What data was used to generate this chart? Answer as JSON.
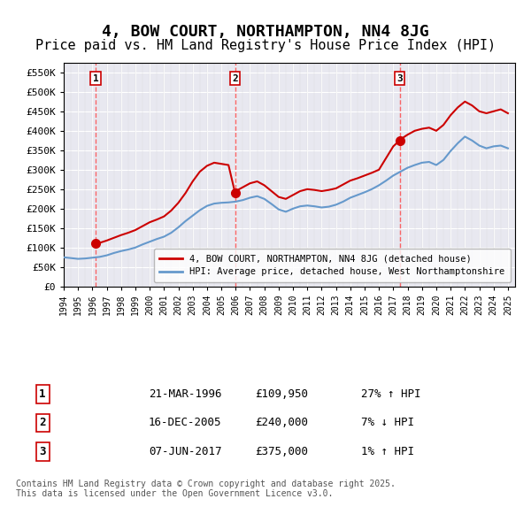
{
  "title": "4, BOW COURT, NORTHAMPTON, NN4 8JG",
  "subtitle": "Price paid vs. HM Land Registry's House Price Index (HPI)",
  "title_fontsize": 13,
  "subtitle_fontsize": 11,
  "background_color": "#ffffff",
  "plot_bg_color": "#e8e8f0",
  "grid_color": "#ffffff",
  "ylim": [
    0,
    575000
  ],
  "yticks": [
    0,
    50000,
    100000,
    150000,
    200000,
    250000,
    300000,
    350000,
    400000,
    450000,
    500000,
    550000
  ],
  "ytick_labels": [
    "£0",
    "£50K",
    "£100K",
    "£150K",
    "£200K",
    "£250K",
    "£300K",
    "£350K",
    "£400K",
    "£450K",
    "£500K",
    "£550K"
  ],
  "sale_dates": [
    1996.22,
    2005.96,
    2017.44
  ],
  "sale_prices": [
    109950,
    240000,
    375000
  ],
  "sale_labels": [
    "1",
    "2",
    "3"
  ],
  "sale_label_dates": [
    1996.22,
    2005.96,
    2017.44
  ],
  "sale_label_prices": [
    109950,
    240000,
    375000
  ],
  "vline_dates": [
    1996.22,
    2005.96,
    2017.44
  ],
  "red_line_color": "#cc0000",
  "blue_line_color": "#6699cc",
  "sale_dot_color": "#cc0000",
  "hpi_color": "#6699cc",
  "legend_box_color": "#ffffff",
  "legend_border_color": "#aaaaaa",
  "table_entries": [
    {
      "num": "1",
      "date": "21-MAR-1996",
      "price": "£109,950",
      "hpi": "27% ↑ HPI"
    },
    {
      "num": "2",
      "date": "16-DEC-2005",
      "price": "£240,000",
      "hpi": "7% ↓ HPI"
    },
    {
      "num": "3",
      "date": "07-JUN-2017",
      "price": "£375,000",
      "hpi": "1% ↑ HPI"
    }
  ],
  "footer": "Contains HM Land Registry data © Crown copyright and database right 2025.\nThis data is licensed under the Open Government Licence v3.0.",
  "red_hpi_data": {
    "years": [
      1996.22,
      1996.5,
      1997.0,
      1997.5,
      1998.0,
      1998.5,
      1999.0,
      1999.5,
      2000.0,
      2000.5,
      2001.0,
      2001.5,
      2002.0,
      2002.5,
      2003.0,
      2003.5,
      2004.0,
      2004.5,
      2005.0,
      2005.5,
      2005.96,
      2006.0,
      2006.5,
      2007.0,
      2007.5,
      2008.0,
      2008.5,
      2009.0,
      2009.5,
      2010.0,
      2010.5,
      2011.0,
      2011.5,
      2012.0,
      2012.5,
      2013.0,
      2013.5,
      2014.0,
      2014.5,
      2015.0,
      2015.5,
      2016.0,
      2016.5,
      2017.0,
      2017.44,
      2017.5,
      2018.0,
      2018.5,
      2019.0,
      2019.5,
      2020.0,
      2020.5,
      2021.0,
      2021.5,
      2022.0,
      2022.5,
      2023.0,
      2023.5,
      2024.0,
      2024.5,
      2025.0
    ],
    "values": [
      109950,
      112000,
      118000,
      125000,
      132000,
      138000,
      145000,
      155000,
      165000,
      172000,
      180000,
      195000,
      215000,
      240000,
      270000,
      295000,
      310000,
      318000,
      315000,
      312000,
      240000,
      245000,
      255000,
      265000,
      270000,
      260000,
      245000,
      230000,
      225000,
      235000,
      245000,
      250000,
      248000,
      245000,
      248000,
      252000,
      262000,
      272000,
      278000,
      285000,
      292000,
      300000,
      330000,
      360000,
      375000,
      378000,
      390000,
      400000,
      405000,
      408000,
      400000,
      415000,
      440000,
      460000,
      475000,
      465000,
      450000,
      445000,
      450000,
      455000,
      445000
    ]
  },
  "blue_hpi_data": {
    "years": [
      1994.0,
      1994.5,
      1995.0,
      1995.5,
      1996.0,
      1996.5,
      1997.0,
      1997.5,
      1998.0,
      1998.5,
      1999.0,
      1999.5,
      2000.0,
      2000.5,
      2001.0,
      2001.5,
      2002.0,
      2002.5,
      2003.0,
      2003.5,
      2004.0,
      2004.5,
      2005.0,
      2005.5,
      2006.0,
      2006.5,
      2007.0,
      2007.5,
      2008.0,
      2008.5,
      2009.0,
      2009.5,
      2010.0,
      2010.5,
      2011.0,
      2011.5,
      2012.0,
      2012.5,
      2013.0,
      2013.5,
      2014.0,
      2014.5,
      2015.0,
      2015.5,
      2016.0,
      2016.5,
      2017.0,
      2017.5,
      2018.0,
      2018.5,
      2019.0,
      2019.5,
      2020.0,
      2020.5,
      2021.0,
      2021.5,
      2022.0,
      2022.5,
      2023.0,
      2023.5,
      2024.0,
      2024.5,
      2025.0
    ],
    "values": [
      75000,
      73000,
      71000,
      72000,
      74000,
      76000,
      80000,
      86000,
      91000,
      95000,
      100000,
      108000,
      115000,
      122000,
      128000,
      138000,
      152000,
      168000,
      182000,
      196000,
      207000,
      213000,
      215000,
      216000,
      218000,
      222000,
      228000,
      232000,
      225000,
      212000,
      198000,
      192000,
      200000,
      206000,
      208000,
      206000,
      203000,
      205000,
      210000,
      218000,
      228000,
      235000,
      242000,
      250000,
      260000,
      272000,
      285000,
      295000,
      305000,
      312000,
      318000,
      320000,
      312000,
      325000,
      348000,
      368000,
      385000,
      375000,
      362000,
      355000,
      360000,
      362000,
      355000
    ]
  }
}
